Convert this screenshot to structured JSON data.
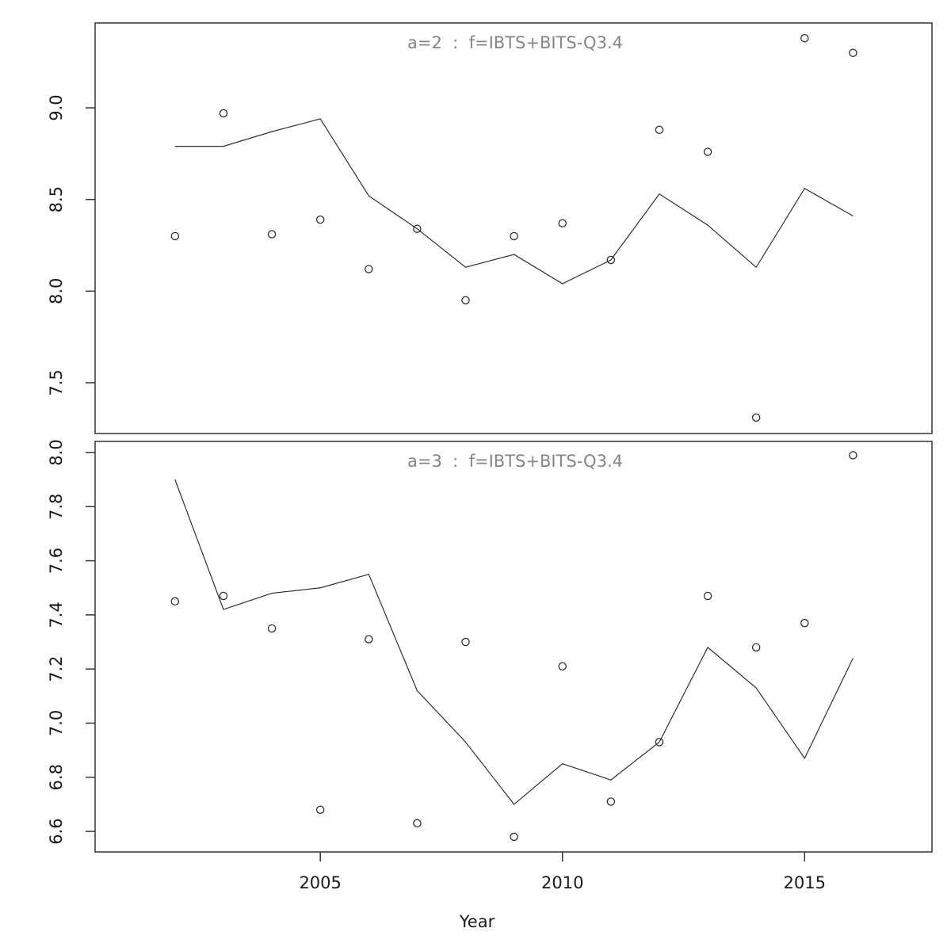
{
  "figure": {
    "background": "#ffffff",
    "xlabel": "Year",
    "xlim": [
      2000.35,
      2017.63
    ],
    "x_tick_values": [
      2005,
      2010,
      2015
    ],
    "x_tick_labels": [
      "2005",
      "2010",
      "2015"
    ],
    "colors": {
      "axis": "#333333",
      "title": "#858585",
      "tick_label": "#1a1a1a",
      "line": "#2f2f2f",
      "point_stroke": "#2f2f2f"
    }
  },
  "chart_data": [
    {
      "type": "scatter",
      "title": "a=2  :  f=IBTS+BITS-Q3.4",
      "x": [
        2002,
        2003,
        2004,
        2005,
        2006,
        2007,
        2008,
        2009,
        2010,
        2011,
        2012,
        2013,
        2014,
        2015,
        2016
      ],
      "ylim": [
        7.223,
        9.463
      ],
      "ytick_values": [
        7.5,
        8.0,
        8.5,
        9.0
      ],
      "ytick_labels": [
        "7.5",
        "8.0",
        "8.5",
        "9.0"
      ],
      "grid": false,
      "legend": "none",
      "series": [
        {
          "name": "observed",
          "marker": "open-circle",
          "values": [
            8.3,
            8.97,
            8.31,
            8.39,
            8.12,
            8.34,
            7.95,
            8.3,
            8.37,
            8.17,
            8.88,
            8.76,
            7.31,
            9.38,
            9.3
          ]
        },
        {
          "name": "fitted",
          "marker": "line",
          "values": [
            8.79,
            8.79,
            8.87,
            8.94,
            8.52,
            8.34,
            8.13,
            8.2,
            8.04,
            8.17,
            8.53,
            8.36,
            8.13,
            8.56,
            8.41
          ]
        }
      ]
    },
    {
      "type": "scatter",
      "title": "a=3  :  f=IBTS+BITS-Q3.4",
      "x": [
        2002,
        2003,
        2004,
        2005,
        2006,
        2007,
        2008,
        2009,
        2010,
        2011,
        2012,
        2013,
        2014,
        2015,
        2016
      ],
      "ylim": [
        6.524,
        8.041
      ],
      "ytick_values": [
        6.6,
        6.8,
        7.0,
        7.2,
        7.4,
        7.6,
        7.8,
        8.0
      ],
      "ytick_labels": [
        "6.6",
        "6.8",
        "7.0",
        "7.2",
        "7.4",
        "7.6",
        "7.8",
        "8.0"
      ],
      "grid": false,
      "legend": "none",
      "series": [
        {
          "name": "observed",
          "marker": "open-circle",
          "values": [
            7.45,
            7.47,
            7.35,
            6.68,
            7.31,
            6.63,
            7.3,
            6.58,
            7.21,
            6.71,
            6.93,
            7.47,
            7.28,
            7.37,
            7.99
          ]
        },
        {
          "name": "fitted",
          "marker": "line",
          "values": [
            7.9,
            7.42,
            7.48,
            7.5,
            7.55,
            7.12,
            6.93,
            6.7,
            6.85,
            6.79,
            6.93,
            7.28,
            7.13,
            6.87,
            7.24
          ]
        }
      ]
    }
  ]
}
